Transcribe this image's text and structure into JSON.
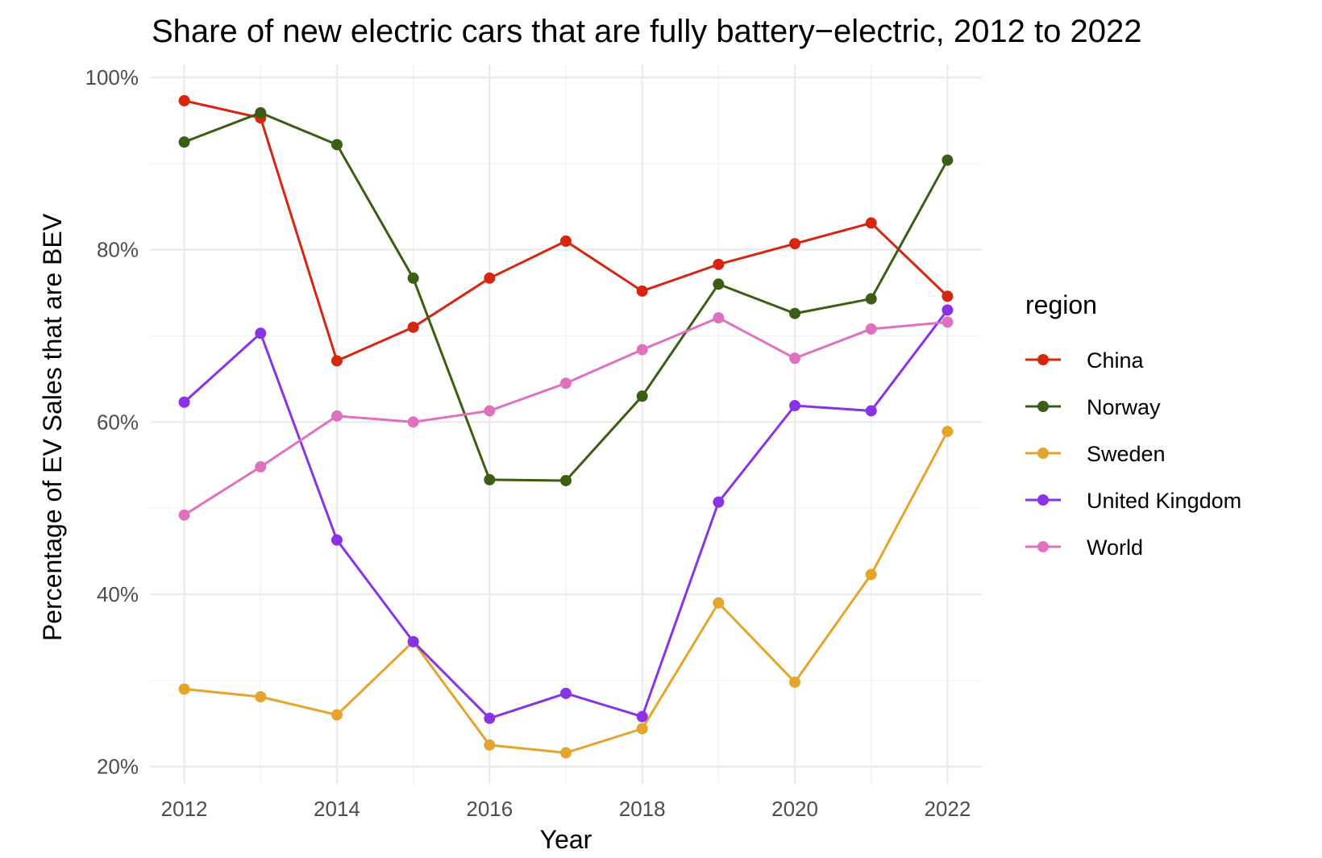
{
  "chart_data": {
    "type": "line",
    "title": "Share of new electric cars that are fully battery−electric, 2012 to 2022",
    "xlabel": "Year",
    "ylabel": "Percentage of EV Sales that are BEV",
    "x": [
      2012,
      2013,
      2014,
      2015,
      2016,
      2017,
      2018,
      2019,
      2020,
      2021,
      2022
    ],
    "xticks": [
      2012,
      2014,
      2016,
      2018,
      2020,
      2022
    ],
    "xtick_labels": [
      "2012",
      "2014",
      "2016",
      "2018",
      "2020",
      "2022"
    ],
    "yticks": [
      20,
      40,
      60,
      80,
      100
    ],
    "ytick_labels": [
      "20%",
      "40%",
      "60%",
      "80%",
      "100%"
    ],
    "xlim": [
      2011.55,
      2022.45
    ],
    "ylim": [
      18,
      101.5
    ],
    "grid": true,
    "legend_title": "region",
    "legend_position": "right",
    "series": [
      {
        "name": "China",
        "color": "#d62610",
        "values": [
          97.3,
          95.3,
          67.1,
          71.0,
          76.7,
          81.0,
          75.2,
          78.3,
          80.7,
          83.1,
          74.6
        ]
      },
      {
        "name": "Norway",
        "color": "#3a5f14",
        "values": [
          92.5,
          95.9,
          92.2,
          76.7,
          53.3,
          53.2,
          63.0,
          76.0,
          72.6,
          74.3,
          90.4
        ]
      },
      {
        "name": "Sweden",
        "color": "#e5a42b",
        "values": [
          29.0,
          28.1,
          26.0,
          34.5,
          22.5,
          21.6,
          24.4,
          39.0,
          29.8,
          42.3,
          58.9
        ]
      },
      {
        "name": "United Kingdom",
        "color": "#8a33e6",
        "values": [
          62.3,
          70.3,
          46.3,
          34.5,
          25.6,
          28.5,
          25.8,
          50.7,
          61.9,
          61.3,
          73.0
        ]
      },
      {
        "name": "World",
        "color": "#e071bf",
        "values": [
          49.2,
          54.8,
          60.7,
          60.0,
          61.3,
          64.5,
          68.4,
          72.1,
          67.4,
          70.8,
          71.6
        ]
      }
    ]
  }
}
